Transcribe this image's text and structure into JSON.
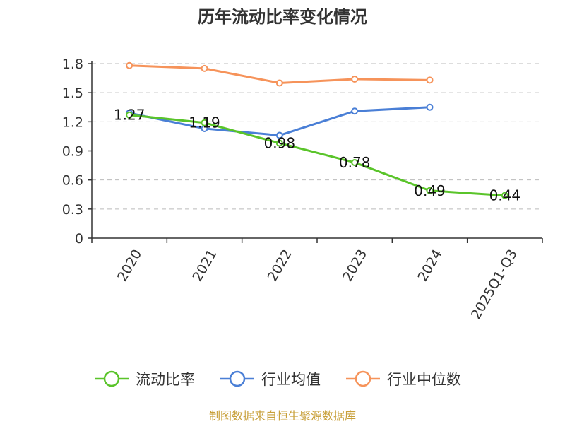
{
  "chart_data": {
    "type": "line",
    "title": "历年流动比率变化情况",
    "categories": [
      "2020",
      "2021",
      "2022",
      "2023",
      "2024",
      "2025Q1-Q3"
    ],
    "ylim": [
      0,
      1.8
    ],
    "yticks": [
      "0",
      "0.3",
      "0.6",
      "0.9",
      "1.2",
      "1.5",
      "1.8"
    ],
    "grid": "horizontal dashed",
    "legend_position": "bottom",
    "series": [
      {
        "name": "流动比率",
        "color": "#5ac42a",
        "values": [
          1.27,
          1.19,
          0.98,
          0.78,
          0.49,
          0.44
        ],
        "labels": [
          "1.27",
          "1.19",
          "0.98",
          "0.78",
          "0.49",
          "0.44"
        ]
      },
      {
        "name": "行业均值",
        "color": "#4a7fd6",
        "values": [
          1.29,
          1.13,
          1.06,
          1.31,
          1.35,
          null
        ]
      },
      {
        "name": "行业中位数",
        "color": "#f6935a",
        "values": [
          1.78,
          1.75,
          1.6,
          1.64,
          1.63,
          null
        ]
      }
    ]
  },
  "source": "制图数据来自恒生聚源数据库"
}
